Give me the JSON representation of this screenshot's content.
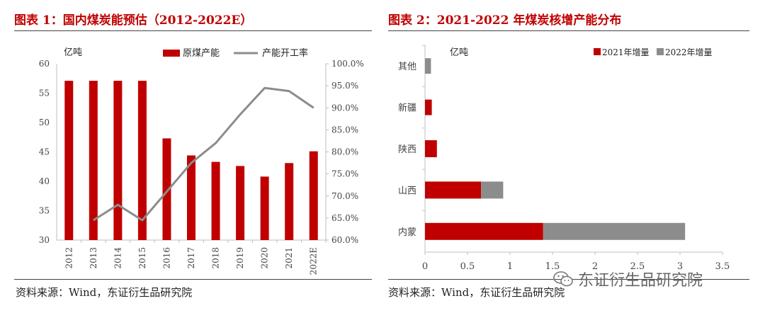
{
  "left": {
    "title": "图表 1：国内煤炭能预估（2012-2022E）",
    "source": "资料来源：Wind，东证衍生品研究院",
    "chart_data": {
      "type": "bar",
      "categories": [
        "2012",
        "2013",
        "2014",
        "2015",
        "2016",
        "2017",
        "2018",
        "2019",
        "2020",
        "2021",
        "2022E"
      ],
      "series": [
        {
          "name": "原煤产能",
          "axis": "left",
          "color": "#c00000",
          "values": [
            57.1,
            57.1,
            57.1,
            57.1,
            47.3,
            44.4,
            43.3,
            42.6,
            40.8,
            43.1,
            45.1
          ]
        },
        {
          "name": "产能开工率",
          "axis": "right",
          "type": "line",
          "color": "#8c8c8c",
          "values": [
            null,
            64.5,
            68.0,
            64.5,
            71.0,
            77.5,
            82.0,
            88.5,
            94.5,
            93.8,
            90.0
          ]
        }
      ],
      "unit_label": "亿吨",
      "ylim": [
        30,
        60
      ],
      "yticks": [
        "30",
        "35",
        "40",
        "45",
        "50",
        "55",
        "60"
      ],
      "y2lim": [
        60,
        100
      ],
      "y2ticks": [
        "60.0%",
        "65.0%",
        "70.0%",
        "75.0%",
        "80.0%",
        "85.0%",
        "90.0%",
        "95.0%",
        "100.0%"
      ]
    }
  },
  "right": {
    "title": "图表 2：2021-2022 年煤炭核增产能分布",
    "source": "资料来源：Wind，东证衍生品研究院",
    "chart_data": {
      "type": "bar",
      "orientation": "horizontal",
      "stacked": true,
      "categories": [
        "其他",
        "新疆",
        "陕西",
        "山西",
        "内蒙"
      ],
      "series": [
        {
          "name": "2021年增量",
          "color": "#c00000",
          "values": [
            0.0,
            0.08,
            0.14,
            0.66,
            1.39
          ]
        },
        {
          "name": "2022年增量",
          "color": "#8c8c8c",
          "values": [
            0.07,
            0.0,
            0.0,
            0.26,
            1.67
          ]
        }
      ],
      "unit_label": "亿吨",
      "xlim": [
        0,
        3.5
      ],
      "xticks": [
        "0",
        "0.5",
        "1",
        "1.5",
        "2",
        "2.5",
        "3",
        "3.5"
      ]
    }
  },
  "watermark": {
    "text": "东证衍生品研究院",
    "icon": "wechat-icon"
  }
}
